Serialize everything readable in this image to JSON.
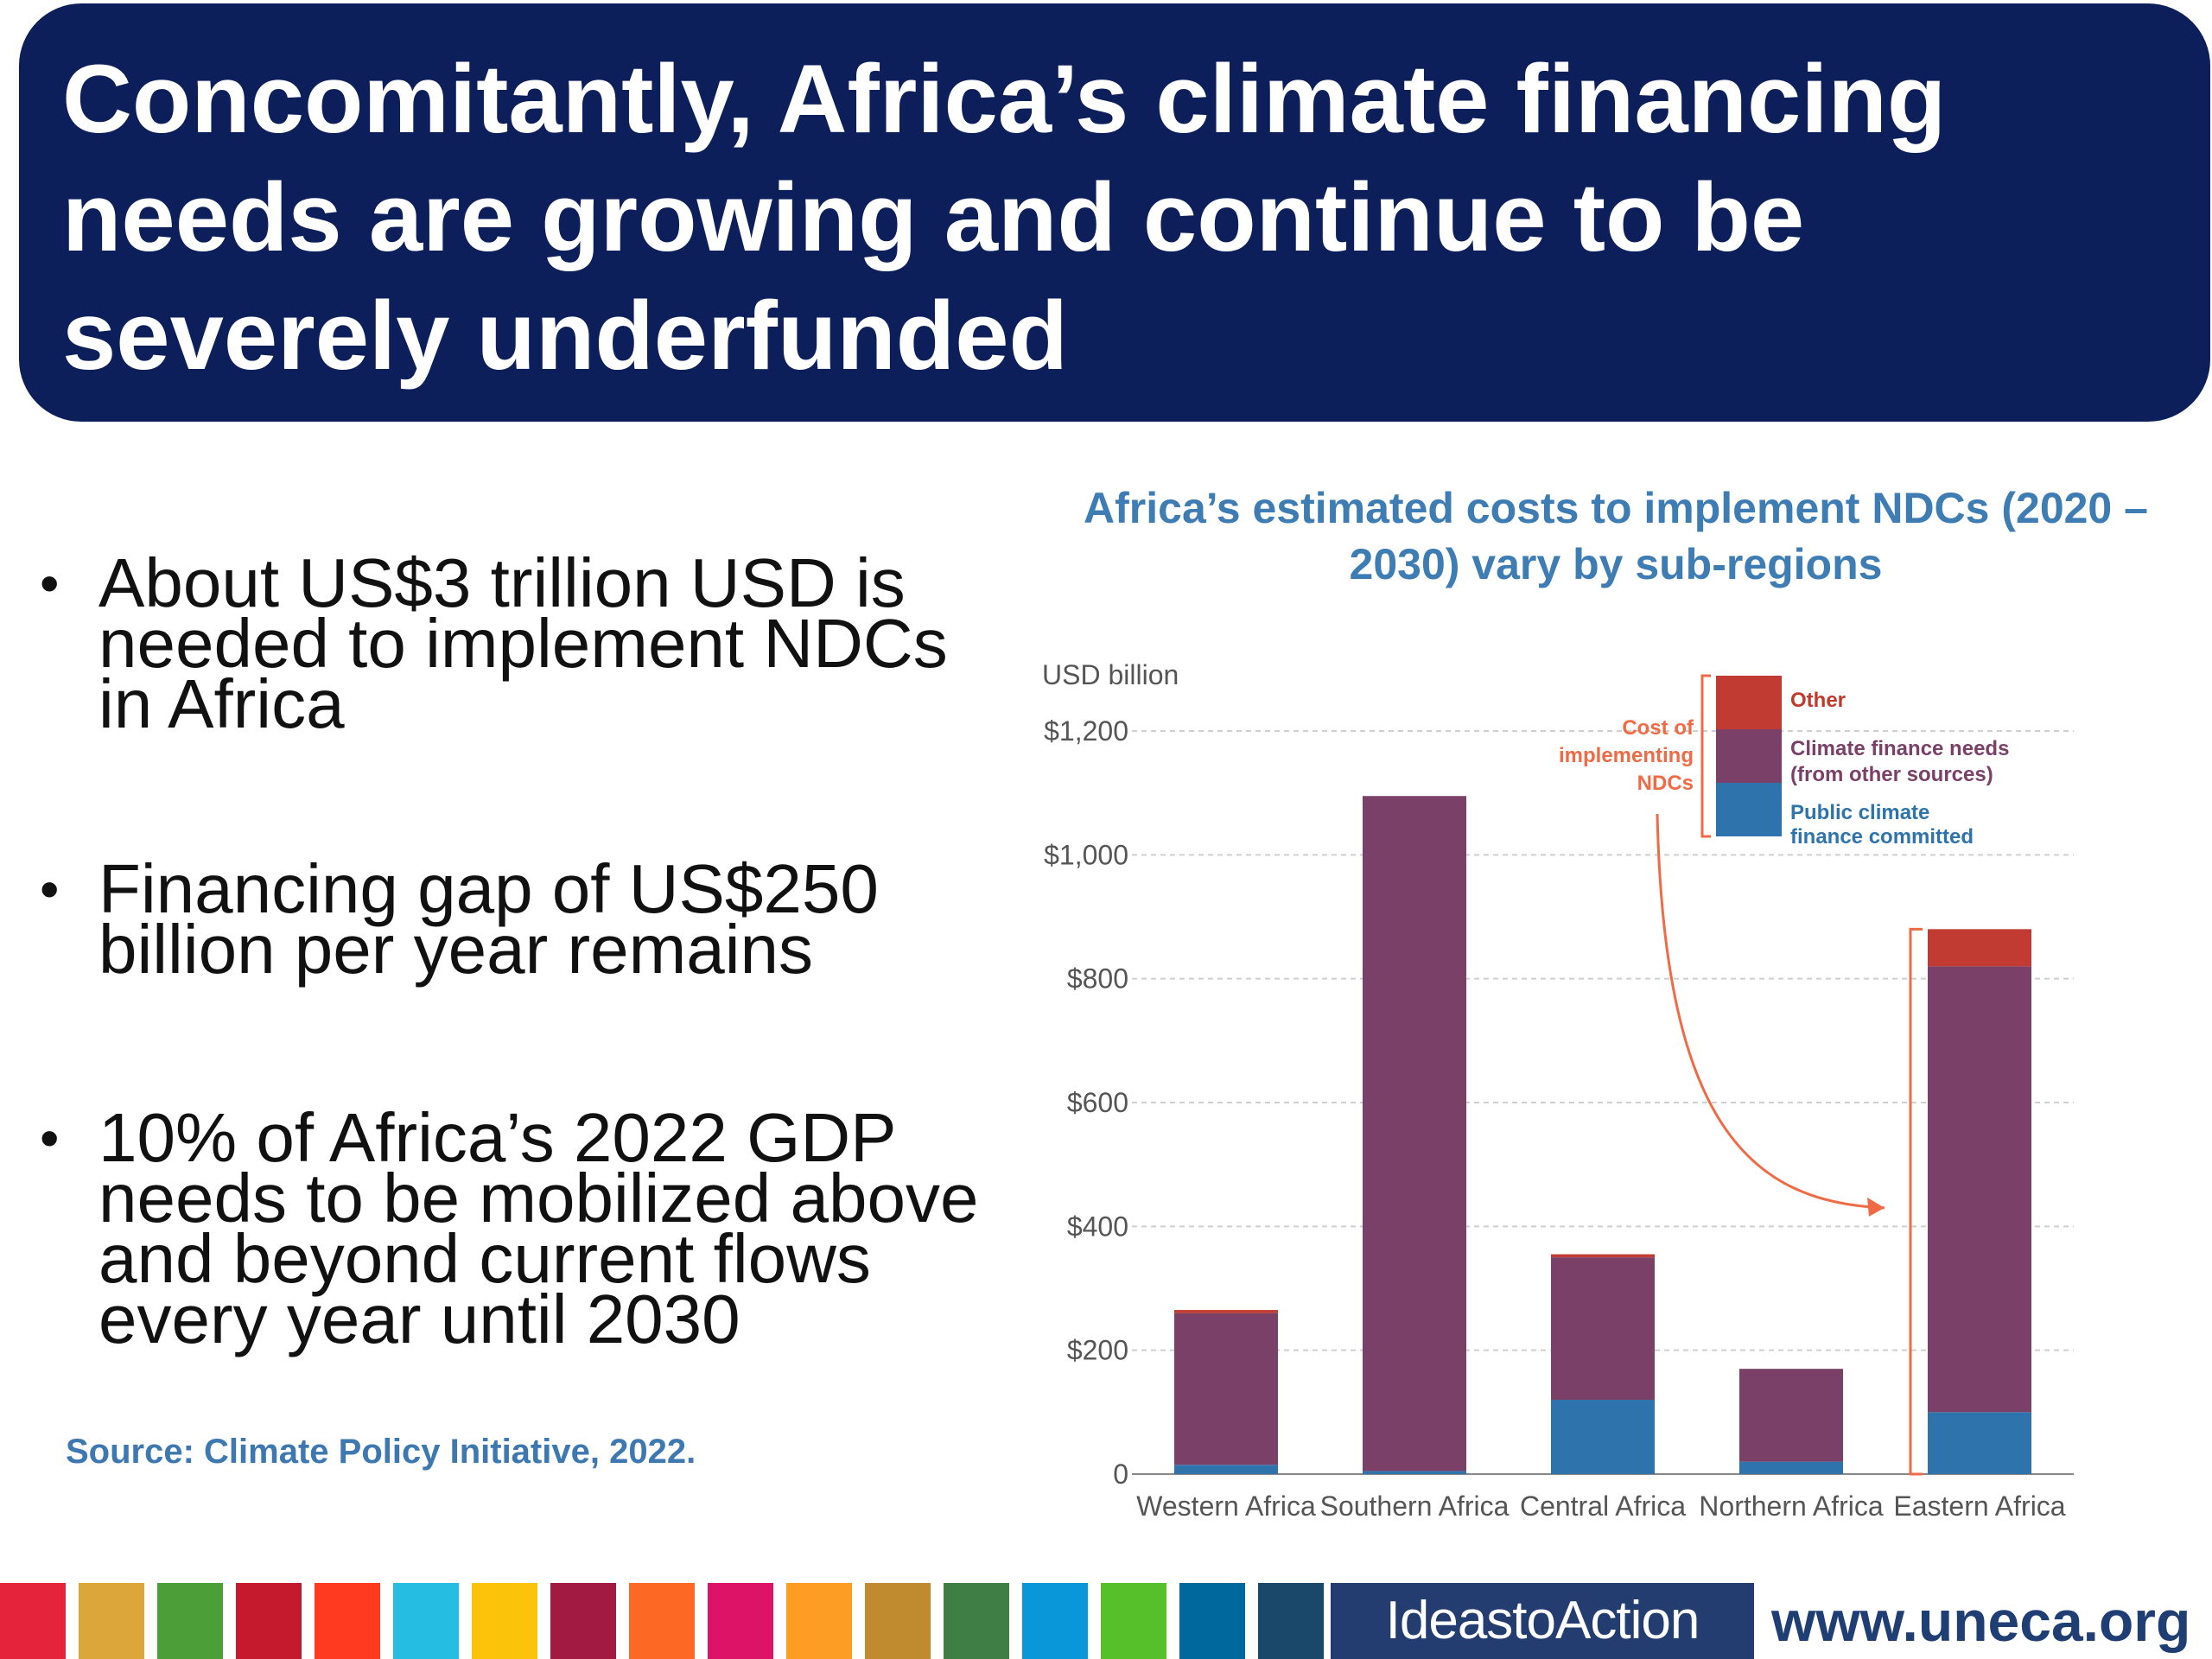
{
  "title": {
    "line1": "Concomitantly, Africa’s climate financing",
    "line2": "needs are growing and continue to be",
    "line3": "severely underfunded"
  },
  "bullets": [
    "About US$3 trillion USD is needed to implement NDCs in Africa",
    "Financing gap of US$250 billion per year remains",
    "10% of Africa’s 2022 GDP needs to be mobilized above and beyond current flows every year until 2030"
  ],
  "source": "Source: Climate Policy Initiative, 2022.",
  "chart_data": {
    "type": "bar",
    "stacked": true,
    "title": "Africa’s estimated costs to implement NDCs (2020 – 2030) vary by sub-regions",
    "ylabel": "USD billion",
    "ylim": [
      0,
      1200
    ],
    "yticks": [
      0,
      200,
      400,
      600,
      800,
      1000,
      1200
    ],
    "ytick_labels": [
      "0",
      "$200",
      "$400",
      "$600",
      "$800",
      "$1,000",
      "$1,200"
    ],
    "categories": [
      "Western Africa",
      "Southern Africa",
      "Central Africa",
      "Northern Africa",
      "Eastern Africa"
    ],
    "series": [
      {
        "name": "Public climate finance committed",
        "color": "#2f73ad",
        "values": [
          15,
          5,
          120,
          20,
          100
        ]
      },
      {
        "name": "Climate finance needs (from other sources)",
        "color": "#7a4068",
        "values": [
          245,
          1090,
          230,
          150,
          720
        ]
      },
      {
        "name": "Other",
        "color": "#c13b32",
        "values": [
          5,
          0,
          5,
          0,
          60
        ]
      }
    ],
    "legend": {
      "position": "top-right",
      "labels": [
        "Other",
        "Climate finance needs (from other sources)",
        "Public climate finance committed"
      ],
      "bracket_label": "Cost of implementing NDCs"
    },
    "grid": true
  },
  "footer": {
    "sdg_colors": [
      "#e5243b",
      "#dda63a",
      "#4c9f38",
      "#c5192d",
      "#ff3a21",
      "#26bde2",
      "#fcc30b",
      "#a21942",
      "#fd6925",
      "#dd1367",
      "#fd9d24",
      "#bf8b2e",
      "#3f7e44",
      "#0a97d9",
      "#56c02b",
      "#00689d",
      "#19486a"
    ],
    "ideas_label": "IdeastoAction",
    "website": "www.uneca.org"
  }
}
